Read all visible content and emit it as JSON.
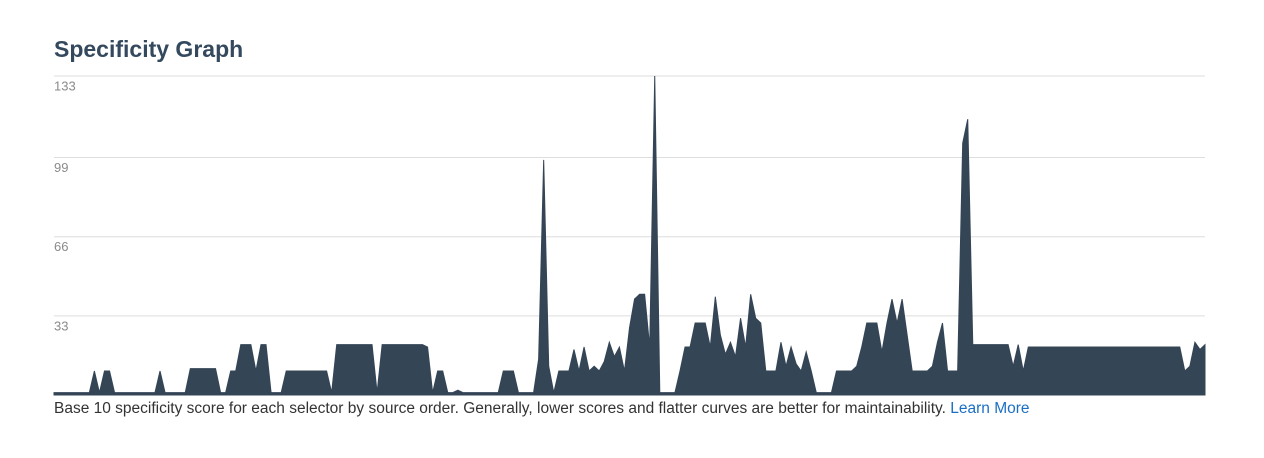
{
  "chart_data": {
    "type": "area",
    "title": "Specificity Graph",
    "caption": "Base 10 specificity score for each selector by source order. Generally, lower scores and flatter curves are better for maintainability.",
    "link": "Learn More",
    "color": "#344556",
    "grid": true,
    "ylim": [
      0,
      133
    ],
    "yticks": [
      33,
      66,
      99,
      133
    ],
    "values": [
      1,
      1,
      1,
      1,
      1,
      1,
      1,
      1,
      10,
      1,
      10,
      10,
      1,
      1,
      1,
      1,
      1,
      1,
      1,
      1,
      1,
      10,
      1,
      1,
      1,
      1,
      1,
      11,
      11,
      11,
      11,
      11,
      11,
      1,
      1,
      10,
      10,
      21,
      21,
      21,
      10,
      21,
      21,
      1,
      1,
      1,
      10,
      10,
      10,
      10,
      10,
      10,
      10,
      10,
      10,
      1,
      21,
      21,
      21,
      21,
      21,
      21,
      21,
      21,
      1,
      21,
      21,
      21,
      21,
      21,
      21,
      21,
      21,
      21,
      20,
      1,
      10,
      10,
      1,
      1,
      2,
      1,
      1,
      1,
      1,
      1,
      1,
      1,
      1,
      10,
      10,
      10,
      1,
      1,
      1,
      1,
      15,
      98,
      12,
      1,
      10,
      10,
      10,
      19,
      10,
      20,
      10,
      12,
      10,
      14,
      22,
      16,
      20,
      10,
      28,
      40,
      42,
      42,
      20,
      133,
      1,
      1,
      1,
      1,
      10,
      20,
      20,
      30,
      30,
      30,
      20,
      41,
      25,
      17,
      22,
      16,
      32,
      20,
      42,
      32,
      30,
      10,
      10,
      10,
      22,
      12,
      20,
      13,
      10,
      18,
      10,
      1,
      1,
      1,
      1,
      10,
      10,
      10,
      10,
      12,
      20,
      30,
      30,
      30,
      18,
      30,
      40,
      30,
      40,
      25,
      10,
      10,
      10,
      10,
      12,
      22,
      30,
      10,
      10,
      10,
      105,
      115,
      21,
      21,
      21,
      21,
      21,
      21,
      21,
      21,
      12,
      21,
      10,
      20,
      20,
      20,
      20,
      20,
      20,
      20,
      20,
      20,
      20,
      20,
      20,
      20,
      20,
      20,
      20,
      20,
      20,
      20,
      20,
      20,
      20,
      20,
      20,
      20,
      20,
      20,
      20,
      20,
      20,
      20,
      10,
      12,
      22,
      19,
      21
    ]
  }
}
